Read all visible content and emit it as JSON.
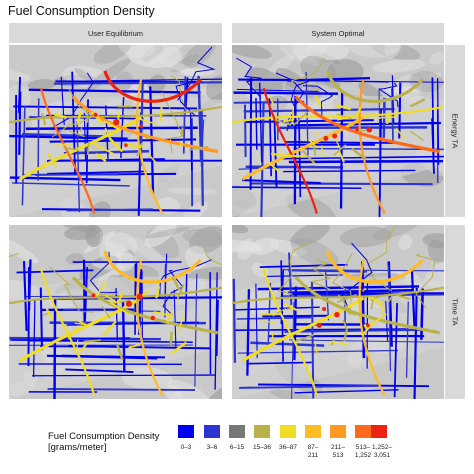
{
  "figure_title": "Fuel Consumption Density",
  "columns": [
    "User Equilibrium",
    "System Optimal"
  ],
  "rows": [
    "Energy TA",
    "Time TA"
  ],
  "legend": {
    "title_line1": "Fuel Consumption Density",
    "title_line2": "[grams/meter]",
    "keys": [
      {
        "label1": "0–3",
        "label2": "",
        "color": "#0000ee"
      },
      {
        "label1": "3–6",
        "label2": "",
        "color": "#2d35d0"
      },
      {
        "label1": "6–15",
        "label2": "",
        "color": "#777777"
      },
      {
        "label1": "15–36",
        "label2": "",
        "color": "#b9b24a"
      },
      {
        "label1": "36–87",
        "label2": "",
        "color": "#eedd22"
      },
      {
        "label1": "87–",
        "label2": "211",
        "color": "#ffbb22"
      },
      {
        "label1": "211–",
        "label2": "513",
        "color": "#ff9922"
      },
      {
        "label1": "513–",
        "label2": "1,252",
        "color": "#ff6a1a"
      },
      {
        "label1": "1,252–",
        "label2": "3,051",
        "color": "#ee2211"
      }
    ]
  },
  "colors": {
    "terrain": "#c9c9c9",
    "strip_bg": "#d9d9d9"
  }
}
